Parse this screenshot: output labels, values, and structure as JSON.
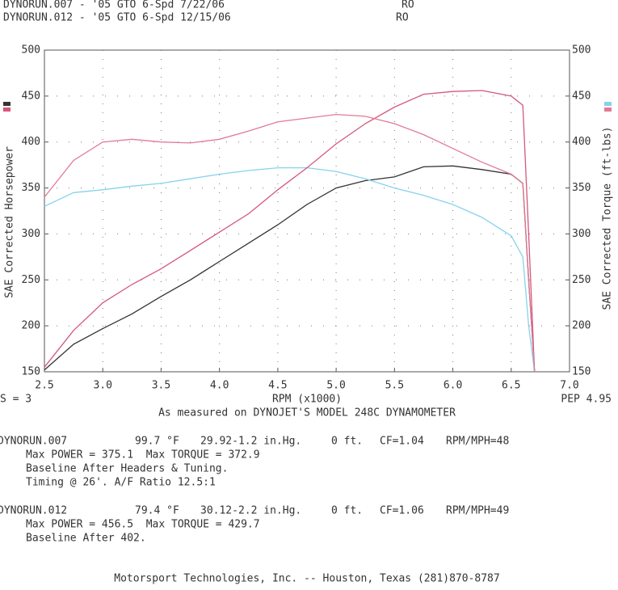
{
  "chart_data": {
    "type": "line",
    "header": [
      {
        "text": "DYNORUN.007 - '05 GTO 6-Spd 7/22/06",
        "code": "RO",
        "color": "#333333"
      },
      {
        "text": "DYNORUN.012 - '05 GTO 6-Spd 12/15/06",
        "code": "RO",
        "color": "#e0708a"
      }
    ],
    "ylabel": "SAE Corrected Horsepower",
    "y2label": "SAE Corrected Torque (ft-lbs)",
    "xlabel": "RPM (x1000)",
    "left_note": "S = 3",
    "right_note": "PEP 4.95",
    "subtitle": "As measured on DYNOJET'S MODEL 248C DYNAMOMETER",
    "x": [
      2.5,
      2.75,
      3.0,
      3.25,
      3.5,
      3.75,
      4.0,
      4.25,
      4.5,
      4.75,
      5.0,
      5.25,
      5.5,
      5.75,
      6.0,
      6.25,
      6.5,
      6.6,
      6.65,
      6.7
    ],
    "series": [
      {
        "color": "#333333",
        "values": [
          152,
          180,
          197,
          213,
          232,
          250,
          270,
          290,
          310,
          332,
          350,
          358,
          362,
          373,
          374,
          370,
          365,
          355,
          250,
          150
        ]
      },
      {
        "color": "#86d2ee",
        "axis": "y2",
        "values": [
          330,
          345,
          348,
          352,
          355,
          360,
          365,
          369,
          372,
          372,
          368,
          360,
          350,
          342,
          332,
          318,
          298,
          275,
          200,
          150
        ]
      },
      {
        "color": "#d4587a",
        "values": [
          155,
          195,
          225,
          245,
          262,
          282,
          302,
          322,
          348,
          372,
          398,
          420,
          438,
          452,
          455,
          456,
          450,
          440,
          300,
          150
        ]
      },
      {
        "color": "#e27a96",
        "axis": "y2",
        "values": [
          340,
          380,
          400,
          403,
          400,
          399,
          403,
          412,
          422,
          426,
          430,
          428,
          420,
          408,
          393,
          378,
          365,
          355,
          250,
          150
        ]
      }
    ],
    "xlim": [
      2.5,
      7.0
    ],
    "xticks": [
      2.5,
      {
        "value": 3,
        "label": "3.0"
      },
      3.5,
      {
        "value": 4,
        "label": "4.0"
      },
      4.5,
      {
        "value": 5,
        "label": "5.0"
      },
      5.5,
      {
        "value": 6,
        "label": "6.0"
      },
      6.5,
      {
        "value": 7,
        "label": "7.0"
      }
    ],
    "ylim": [
      150,
      500
    ],
    "yticks": [
      150,
      200,
      250,
      300,
      350,
      400,
      450,
      500
    ],
    "y2lim": [
      150,
      500
    ],
    "y2ticks": [
      150,
      200,
      250,
      300,
      350,
      400,
      450,
      500
    ],
    "grid": true
  },
  "run_info": [
    {
      "color": "#333333",
      "fields": [
        "DYNORUN.007",
        "99.7 °F",
        "29.92-1.2 in.Hg.",
        "0 ft.",
        "CF=1.04",
        "RPM/MPH=48"
      ],
      "lines": [
        "Max POWER = 375.1  Max TORQUE = 372.9",
        "Baseline After Headers & Tuning.",
        "Timing @ 26'. A/F Ratio 12.5:1"
      ]
    },
    {
      "color": "#e0708a",
      "fields": [
        "DYNORUN.012",
        "79.4 °F",
        "30.12-2.2 in.Hg.",
        "0 ft.",
        "CF=1.06",
        "RPM/MPH=49"
      ],
      "lines": [
        "Max POWER = 456.5  Max TORQUE = 429.7",
        "Baseline After 402."
      ]
    }
  ],
  "footer": "Motorsport Technologies, Inc. -- Houston, Texas (281)870-8787"
}
